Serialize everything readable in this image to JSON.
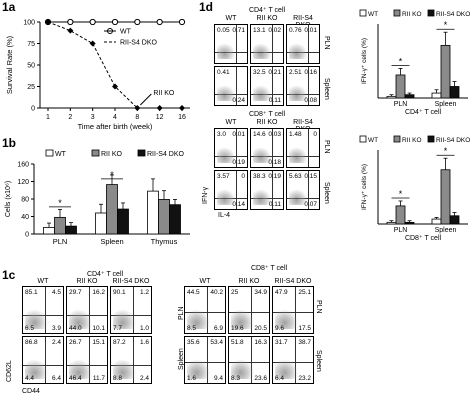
{
  "panels": {
    "p1a": "1a",
    "p1b": "1b",
    "p1c": "1c",
    "p1d": "1d"
  },
  "fig1a": {
    "ylabel": "Survival Rate (%)",
    "xlabel": "Time after birth (week)",
    "yticks": [
      "0",
      "25",
      "50",
      "75",
      "100"
    ],
    "xticks": [
      "1",
      "2",
      "3",
      "4",
      "8",
      "12",
      "16"
    ],
    "legend": [
      "WT",
      "RII-S4 DKO"
    ],
    "annotation": "RII KO"
  },
  "fig1b": {
    "ylabel": "Cells (x10⁶)",
    "legend": [
      "WT",
      "RII KO",
      "RII-S4 DKO"
    ],
    "yticks": [
      "0",
      "40",
      "80",
      "120",
      "160"
    ],
    "categories": [
      "PLN",
      "Spleen",
      "Thymus"
    ],
    "star": "*"
  },
  "fig1c": {
    "left_title": "CD4⁺ T cell",
    "right_title": "CD8⁺ T cell",
    "cols": [
      "WT",
      "RII KO",
      "RII-S4 DKO"
    ],
    "rows": [
      "PLN",
      "Spleen"
    ],
    "ylabel": "CD62L",
    "xlabel": "CD44",
    "cd4": [
      [
        [
          "85.1",
          "4.5",
          "6.5",
          "3.9"
        ],
        [
          "29.7",
          "16.2",
          "44.0",
          "10.1"
        ],
        [
          "90.1",
          "1.2",
          "7.7",
          "1.0"
        ]
      ],
      [
        [
          "86.8",
          "2.4",
          "4.4",
          "6.4"
        ],
        [
          "26.7",
          "15.1",
          "46.4",
          "11.7"
        ],
        [
          "87.2",
          "1.6",
          "8.8",
          "2.4"
        ]
      ]
    ],
    "cd8": [
      [
        [
          "44.5",
          "40.2",
          "8.5",
          "6.9"
        ],
        [
          "25",
          "34.9",
          "19.6",
          "20.5"
        ],
        [
          "47.9",
          "25.1",
          "9.6",
          "17.5"
        ]
      ],
      [
        [
          "35.6",
          "53.4",
          "1.6",
          "9.4"
        ],
        [
          "51.8",
          "16.3",
          "8.3",
          "23.6"
        ],
        [
          "31.7",
          "38.7",
          "6.4",
          "23.2"
        ]
      ]
    ]
  },
  "fig1d": {
    "cd4_title": "CD4⁺ T cell",
    "cd8_title": "CD8⁺ T cell",
    "cols": [
      "WT",
      "RII KO",
      "RII-S4 DKO"
    ],
    "rows": [
      "PLN",
      "Spleen"
    ],
    "ylabel": "IFN-γ",
    "xlabel": "IL-4",
    "cd4": [
      [
        [
          "0.05",
          "0.71",
          "",
          ""
        ],
        [
          "13.1",
          "0.02",
          "",
          ""
        ],
        [
          "0.76",
          "0.01",
          "",
          ""
        ]
      ],
      [
        [
          "0.41",
          "",
          "",
          "0.24"
        ],
        [
          "32.5",
          "0.21",
          "",
          "0.11"
        ],
        [
          "2.51",
          "0.16",
          "",
          "0.08"
        ]
      ]
    ],
    "cd8": [
      [
        [
          "3.0",
          "0.01",
          "",
          "0.19"
        ],
        [
          "14.6",
          "0.03",
          "",
          "0.18"
        ],
        [
          "1.48",
          "0",
          "",
          ""
        ]
      ],
      [
        [
          "3.57",
          "0",
          "",
          "0.14"
        ],
        [
          "38.3",
          "0.19",
          "",
          "0.11"
        ],
        [
          "5.63",
          "0.15",
          "",
          "0.07"
        ]
      ]
    ],
    "bar_legend": [
      "WT",
      "RII KO",
      "RII-S4 DKO"
    ],
    "bar_ylabel": "IFN-γ⁺ cells (%)",
    "bar_categories": [
      "PLN",
      "Spleen"
    ],
    "bar_top_xlabel": "CD4⁺ T cell",
    "bar_bot_xlabel": "CD8⁺ T cell",
    "star": "*"
  },
  "chart_data": [
    {
      "type": "line",
      "title": "",
      "xlabel": "Time after birth (week)",
      "ylabel": "Survival Rate (%)",
      "x": [
        1,
        2,
        3,
        4,
        8,
        12,
        16
      ],
      "ylim": [
        0,
        100
      ],
      "series": [
        {
          "name": "WT",
          "values": [
            100,
            100,
            100,
            100,
            100,
            100,
            100
          ]
        },
        {
          "name": "RII-S4 DKO",
          "values": [
            100,
            100,
            100,
            100,
            100,
            100,
            100
          ]
        },
        {
          "name": "RII KO",
          "values": [
            100,
            90,
            75,
            25,
            0,
            0,
            0
          ]
        }
      ]
    },
    {
      "type": "bar",
      "title": "",
      "xlabel": "",
      "ylabel": "Cells (x10⁶)",
      "categories": [
        "PLN",
        "Spleen",
        "Thymus"
      ],
      "ylim": [
        0,
        160
      ],
      "series": [
        {
          "name": "WT",
          "values": [
            15,
            48,
            98
          ]
        },
        {
          "name": "RII KO",
          "values": [
            38,
            113,
            79
          ]
        },
        {
          "name": "RII-S4 DKO",
          "values": [
            18,
            57,
            67
          ]
        }
      ],
      "errors": [
        [
          10,
          20,
          28
        ],
        [
          18,
          22,
          20
        ],
        [
          8,
          14,
          12
        ]
      ]
    },
    {
      "type": "bar",
      "title": "",
      "xlabel": "CD4⁺ T cell",
      "ylabel": "IFN-γ⁺ cells (%)",
      "categories": [
        "PLN",
        "Spleen"
      ],
      "ylim": [
        0,
        45
      ],
      "series": [
        {
          "name": "WT",
          "values": [
            1,
            3
          ]
        },
        {
          "name": "RII KO",
          "values": [
            14,
            32
          ]
        },
        {
          "name": "RII-S4 DKO",
          "values": [
            2,
            7
          ]
        }
      ],
      "errors": [
        [
          1,
          2
        ],
        [
          4,
          8
        ],
        [
          1,
          3
        ]
      ]
    },
    {
      "type": "bar",
      "title": "",
      "xlabel": "CD8⁺ T cell",
      "ylabel": "IFN-γ⁺ cells (%)",
      "categories": [
        "PLN",
        "Spleen"
      ],
      "ylim": [
        0,
        45
      ],
      "series": [
        {
          "name": "WT",
          "values": [
            1,
            3
          ]
        },
        {
          "name": "RII KO",
          "values": [
            11,
            33
          ]
        },
        {
          "name": "RII-S4 DKO",
          "values": [
            1,
            5
          ]
        }
      ],
      "errors": [
        [
          1,
          1
        ],
        [
          3,
          7
        ],
        [
          1,
          2
        ]
      ]
    }
  ]
}
